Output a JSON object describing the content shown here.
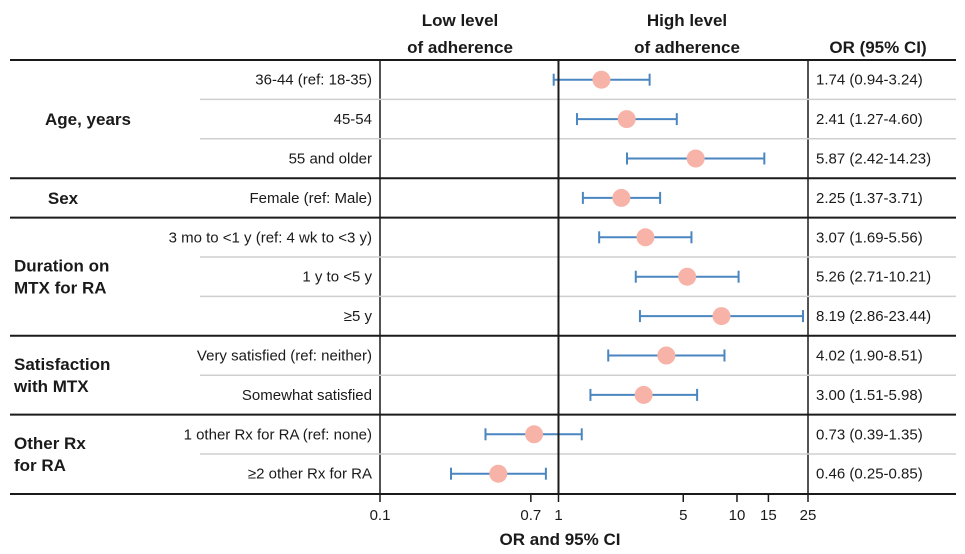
{
  "headers": {
    "low_line1": "Low level",
    "low_line2": "of adherence",
    "high_line1": "High level",
    "high_line2": "of adherence",
    "or_ci": "OR (95% CI)"
  },
  "x_axis_title": "OR and 95% CI",
  "colors": {
    "marker": "#f7b3a8",
    "ci_line": "#4a86c0",
    "axis": "#1a1a1a"
  },
  "chart_data": {
    "type": "forest",
    "x_scale": "log",
    "xlim": [
      0.1,
      25
    ],
    "reference_line": 1,
    "xticks": [
      {
        "value": 0.1,
        "label": "0.1"
      },
      {
        "value": 0.7,
        "label": "0.7"
      },
      {
        "value": 1,
        "label": "1"
      },
      {
        "value": 5,
        "label": "5"
      },
      {
        "value": 10,
        "label": "10"
      },
      {
        "value": 15,
        "label": "15"
      },
      {
        "value": 25,
        "label": "25"
      }
    ],
    "groups": [
      {
        "name": "Age, years",
        "name_lines": [
          "Age, years"
        ]
      },
      {
        "name": "Sex",
        "name_lines": [
          "Sex"
        ]
      },
      {
        "name": "Duration on MTX for RA",
        "name_lines": [
          "Duration on",
          "MTX for RA"
        ]
      },
      {
        "name": "Satisfaction with MTX",
        "name_lines": [
          "Satisfaction",
          "with MTX"
        ]
      },
      {
        "name": "Other Rx for RA",
        "name_lines": [
          "Other Rx",
          "for RA"
        ]
      }
    ],
    "rows": [
      {
        "group": 0,
        "label": "36-44 (ref: 18-35)",
        "or": 1.74,
        "lo": 0.94,
        "hi": 3.24,
        "text": "1.74 (0.94-3.24)"
      },
      {
        "group": 0,
        "label": "45-54",
        "or": 2.41,
        "lo": 1.27,
        "hi": 4.6,
        "text": "2.41 (1.27-4.60)"
      },
      {
        "group": 0,
        "label": "55 and older",
        "or": 5.87,
        "lo": 2.42,
        "hi": 14.23,
        "text": "5.87 (2.42-14.23)"
      },
      {
        "group": 1,
        "label": "Female (ref: Male)",
        "or": 2.25,
        "lo": 1.37,
        "hi": 3.71,
        "text": "2.25 (1.37-3.71)"
      },
      {
        "group": 2,
        "label": "3 mo to <1 y (ref: 4 wk to <3 y)",
        "or": 3.07,
        "lo": 1.69,
        "hi": 5.56,
        "text": "3.07 (1.69-5.56)"
      },
      {
        "group": 2,
        "label": "1 y to <5 y",
        "or": 5.26,
        "lo": 2.71,
        "hi": 10.21,
        "text": "5.26 (2.71-10.21)"
      },
      {
        "group": 2,
        "label": "≥5 y",
        "or": 8.19,
        "lo": 2.86,
        "hi": 23.44,
        "text": "8.19 (2.86-23.44)"
      },
      {
        "group": 3,
        "label": "Very satisfied (ref: neither)",
        "or": 4.02,
        "lo": 1.9,
        "hi": 8.51,
        "text": "4.02 (1.90-8.51)"
      },
      {
        "group": 3,
        "label": "Somewhat satisfied",
        "or": 3.0,
        "lo": 1.51,
        "hi": 5.98,
        "text": "3.00 (1.51-5.98)"
      },
      {
        "group": 4,
        "label": "1 other Rx for RA (ref: none)",
        "or": 0.73,
        "lo": 0.39,
        "hi": 1.35,
        "text": "0.73 (0.39-1.35)"
      },
      {
        "group": 4,
        "label": "≥2 other Rx for RA",
        "or": 0.46,
        "lo": 0.25,
        "hi": 0.85,
        "text": "0.46 (0.25-0.85)"
      }
    ]
  }
}
